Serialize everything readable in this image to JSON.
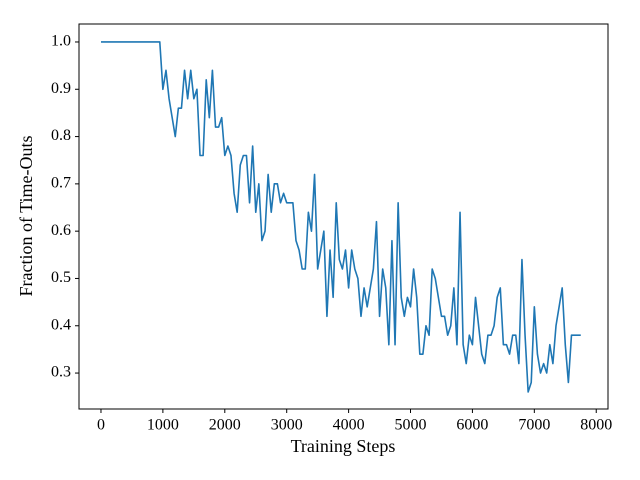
{
  "chart_data": {
    "type": "line",
    "xlabel": "Training Steps",
    "ylabel": "Fraction of Time-Outs",
    "color": "#1f77b4",
    "x": [
      0,
      950,
      1000,
      1050,
      1100,
      1150,
      1200,
      1250,
      1300,
      1350,
      1400,
      1450,
      1500,
      1550,
      1600,
      1650,
      1700,
      1750,
      1800,
      1850,
      1900,
      1950,
      2000,
      2050,
      2100,
      2150,
      2200,
      2250,
      2300,
      2350,
      2400,
      2450,
      2500,
      2550,
      2600,
      2650,
      2700,
      2750,
      2800,
      2850,
      2900,
      2950,
      3000,
      3050,
      3100,
      3150,
      3200,
      3250,
      3300,
      3350,
      3400,
      3450,
      3500,
      3550,
      3600,
      3650,
      3700,
      3750,
      3800,
      3850,
      3900,
      3950,
      4000,
      4050,
      4100,
      4150,
      4200,
      4250,
      4300,
      4350,
      4400,
      4450,
      4500,
      4550,
      4600,
      4650,
      4700,
      4750,
      4800,
      4850,
      4900,
      4950,
      5000,
      5050,
      5100,
      5150,
      5200,
      5250,
      5300,
      5350,
      5400,
      5450,
      5500,
      5550,
      5600,
      5650,
      5700,
      5750,
      5800,
      5850,
      5900,
      5950,
      6000,
      6050,
      6100,
      6150,
      6200,
      6250,
      6300,
      6350,
      6400,
      6450,
      6500,
      6550,
      6600,
      6650,
      6700,
      6750,
      6800,
      6850,
      6900,
      6950,
      7000,
      7050,
      7100,
      7150,
      7200,
      7250,
      7300,
      7350,
      7400,
      7450,
      7500,
      7550,
      7600,
      7650,
      7700,
      7750
    ],
    "values": [
      1.0,
      1.0,
      0.9,
      0.94,
      0.88,
      0.84,
      0.8,
      0.86,
      0.86,
      0.94,
      0.88,
      0.94,
      0.88,
      0.9,
      0.76,
      0.76,
      0.92,
      0.84,
      0.94,
      0.82,
      0.82,
      0.84,
      0.76,
      0.78,
      0.76,
      0.68,
      0.64,
      0.74,
      0.76,
      0.76,
      0.66,
      0.78,
      0.64,
      0.7,
      0.58,
      0.6,
      0.72,
      0.64,
      0.7,
      0.7,
      0.66,
      0.68,
      0.66,
      0.66,
      0.66,
      0.58,
      0.56,
      0.52,
      0.52,
      0.64,
      0.6,
      0.72,
      0.52,
      0.56,
      0.6,
      0.42,
      0.56,
      0.46,
      0.66,
      0.54,
      0.52,
      0.56,
      0.48,
      0.56,
      0.52,
      0.5,
      0.42,
      0.48,
      0.44,
      0.48,
      0.52,
      0.62,
      0.42,
      0.52,
      0.48,
      0.36,
      0.58,
      0.36,
      0.66,
      0.46,
      0.42,
      0.46,
      0.44,
      0.52,
      0.46,
      0.34,
      0.34,
      0.4,
      0.38,
      0.52,
      0.5,
      0.46,
      0.42,
      0.42,
      0.38,
      0.4,
      0.48,
      0.36,
      0.64,
      0.36,
      0.32,
      0.38,
      0.36,
      0.46,
      0.4,
      0.34,
      0.32,
      0.38,
      0.38,
      0.4,
      0.46,
      0.48,
      0.36,
      0.36,
      0.34,
      0.38,
      0.38,
      0.32,
      0.54,
      0.38,
      0.26,
      0.28,
      0.44,
      0.34,
      0.3,
      0.32,
      0.3,
      0.36,
      0.32,
      0.4,
      0.44,
      0.48,
      0.36,
      0.28,
      0.38,
      0.38,
      0.38,
      0.38
    ],
    "xlim": [
      -355,
      8190
    ],
    "ylim": [
      0.224,
      1.038
    ],
    "xticks": [
      0,
      1000,
      2000,
      3000,
      4000,
      5000,
      6000,
      7000,
      8000
    ],
    "yticks": [
      0.3,
      0.4,
      0.5,
      0.6,
      0.7,
      0.8,
      0.9,
      {
        "value": 1,
        "label": "1.0"
      }
    ]
  }
}
